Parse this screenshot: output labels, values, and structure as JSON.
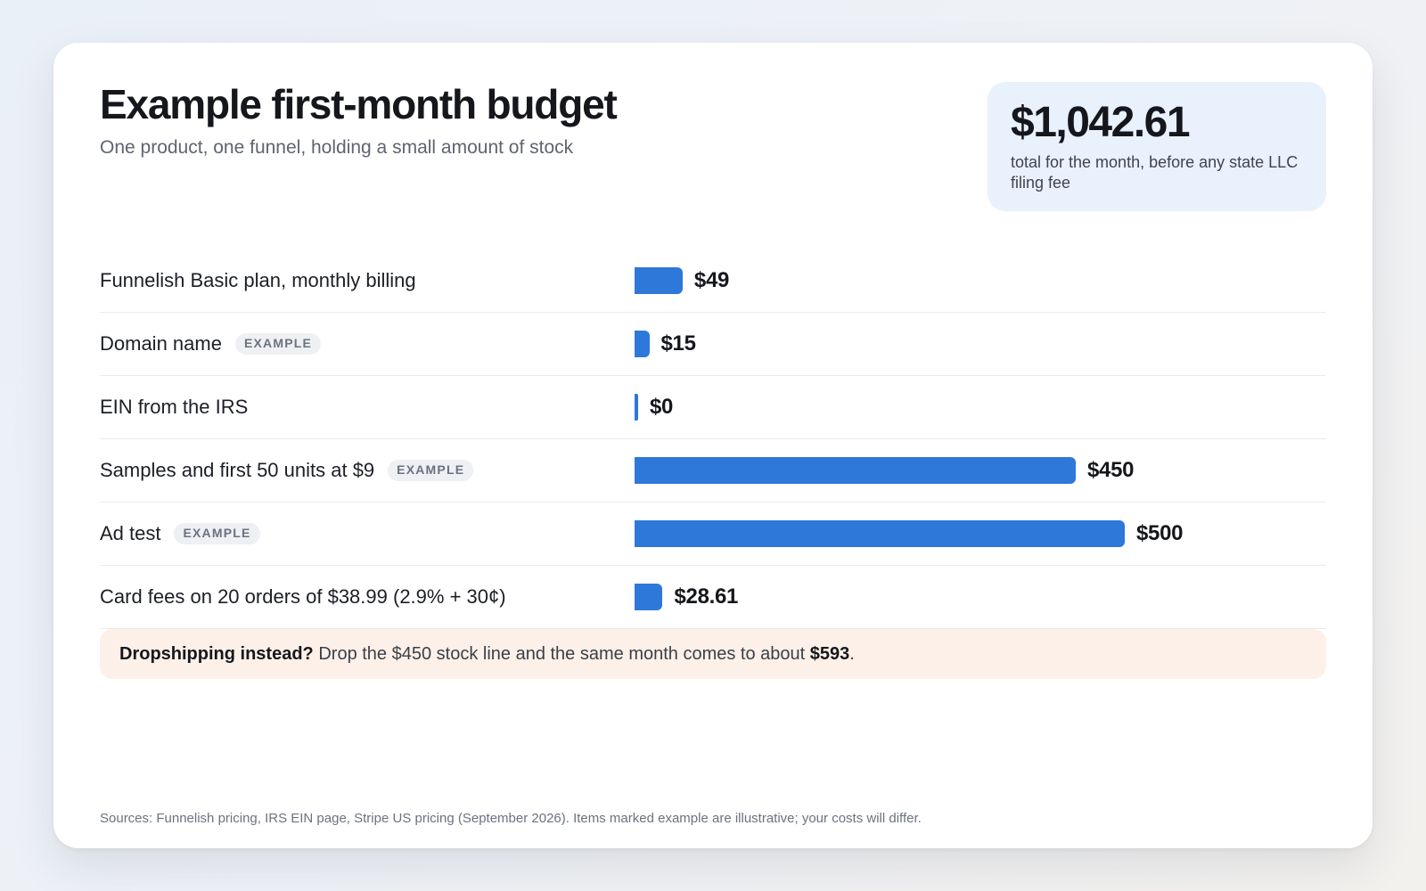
{
  "header": {
    "title": "Example first-month budget",
    "subtitle": "One product, one funnel, holding a small amount of stock"
  },
  "total": {
    "amount": "$1,042.61",
    "note": "total for the month, before any state LLC filing fee"
  },
  "chart_data": {
    "type": "bar",
    "orientation": "horizontal",
    "categories": [
      "Funnelish Basic plan, monthly billing",
      "Domain name",
      "EIN from the IRS",
      "Samples and first 50 units at $9",
      "Ad test",
      "Card fees on 20 orders of $38.99 (2.9% + 30¢)"
    ],
    "values": [
      49,
      15,
      0,
      450,
      500,
      28.61
    ],
    "value_labels": [
      "$49",
      "$15",
      "$0",
      "$450",
      "$500",
      "$28.61"
    ],
    "badges": [
      "",
      "EXAMPLE",
      "",
      "EXAMPLE",
      "EXAMPLE",
      ""
    ],
    "xlim": [
      0,
      500
    ],
    "bar_color": "#2d78d8",
    "grid": false,
    "legend": "none"
  },
  "callout": {
    "lead": "Dropshipping instead?",
    "text": " Drop the $450 stock line and the same month comes to about ",
    "amount": "$593",
    "end": "."
  },
  "footer": {
    "sources": "Sources: Funnelish pricing, IRS EIN page, Stripe US pricing (September 2026). Items marked example are illustrative; your costs will differ."
  },
  "colors": {
    "accent": "#2d78d8",
    "total_box": "#e9f1fd",
    "callout_bg": "#fdf0e8"
  }
}
